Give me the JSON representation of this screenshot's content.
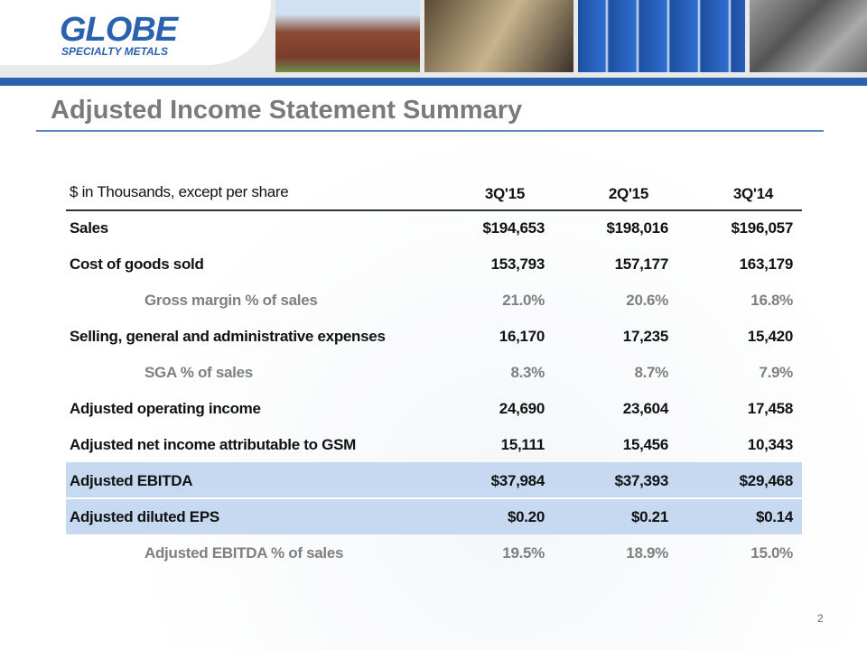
{
  "logo": {
    "name": "GLOBE",
    "tagline": "SPECIALTY METALS"
  },
  "title": "Adjusted Income Statement Summary",
  "table": {
    "header": [
      "$ in Thousands, except per share",
      "3Q'15",
      "2Q'15",
      "3Q'14"
    ],
    "rows": [
      [
        "Sales",
        "$194,653",
        "$198,016",
        "$196,057"
      ],
      [
        "Cost of goods sold",
        "153,793",
        "157,177",
        "163,179"
      ],
      [
        "Gross margin % of sales",
        "21.0%",
        "20.6%",
        "16.8%"
      ],
      [
        "Selling, general and administrative expenses",
        "16,170",
        "17,235",
        "15,420"
      ],
      [
        "SGA % of sales",
        "8.3%",
        "8.7%",
        "7.9%"
      ],
      [
        "Adjusted operating income",
        "24,690",
        "23,604",
        "17,458"
      ],
      [
        "Adjusted net income attributable to GSM",
        "15,111",
        "15,456",
        "10,343"
      ],
      [
        "Adjusted EBITDA",
        "$37,984",
        "$37,393",
        "$29,468"
      ],
      [
        "Adjusted diluted EPS",
        "$0.20",
        "$0.21",
        "$0.14"
      ],
      [
        "Adjusted EBITDA % of sales",
        "19.5%",
        "18.9%",
        "15.0%"
      ]
    ]
  },
  "page_number": "2"
}
